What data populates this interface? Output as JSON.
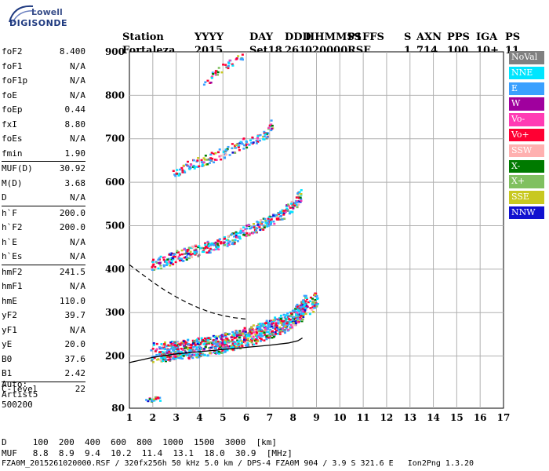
{
  "brand": {
    "line1": "Lowell",
    "line2": "DIGISONDE"
  },
  "header": {
    "labels": [
      "Station",
      "YYYY",
      "DAY",
      "DDD",
      "HHMMSS",
      "P1",
      "FFS",
      "S",
      "AXN",
      "PPS",
      "IGA",
      "PS"
    ],
    "values": [
      "Fortaleza",
      "2015",
      "Set18",
      "261",
      "020000",
      "RSF",
      "",
      "1",
      "714",
      "100",
      "10+",
      "11"
    ]
  },
  "params": [
    [
      {
        "name": "foF2",
        "value": "8.400"
      },
      {
        "name": "foF1",
        "value": "N/A"
      },
      {
        "name": "foF1p",
        "value": "N/A"
      },
      {
        "name": "foE",
        "value": "N/A"
      },
      {
        "name": "foEp",
        "value": "0.44"
      },
      {
        "name": "fxI",
        "value": "8.80"
      },
      {
        "name": "foEs",
        "value": "N/A"
      },
      {
        "name": "fmin",
        "value": "1.90"
      }
    ],
    [
      {
        "name": "MUF(D)",
        "value": "30.92"
      },
      {
        "name": "M(D)",
        "value": "3.68"
      },
      {
        "name": "D",
        "value": "N/A"
      }
    ],
    [
      {
        "name": "h`F",
        "value": "200.0"
      },
      {
        "name": "h`F2",
        "value": "200.0"
      },
      {
        "name": "h`E",
        "value": "N/A"
      },
      {
        "name": "h`Es",
        "value": "N/A"
      }
    ],
    [
      {
        "name": "hmF2",
        "value": "241.5"
      },
      {
        "name": "hmF1",
        "value": "N/A"
      },
      {
        "name": "hmE",
        "value": "110.0"
      },
      {
        "name": "yF2",
        "value": "39.7"
      },
      {
        "name": "yF1",
        "value": "N/A"
      },
      {
        "name": "yE",
        "value": "20.0"
      },
      {
        "name": "B0",
        "value": "37.6"
      },
      {
        "name": "B1",
        "value": "2.42"
      }
    ],
    [
      {
        "name": "C-level",
        "value": "22"
      }
    ]
  ],
  "auto": {
    "line1": "Auto:",
    "line2": "Artist5",
    "line3": "500200"
  },
  "legend": [
    {
      "label": "NoVal",
      "color": "#808080"
    },
    {
      "label": "NNE",
      "color": "#00e5ff"
    },
    {
      "label": "E",
      "color": "#3aa0ff"
    },
    {
      "label": "W",
      "color": "#a0009e"
    },
    {
      "label": "Vo-",
      "color": "#ff3cb4"
    },
    {
      "label": "Vo+",
      "color": "#ff0033"
    },
    {
      "label": "SSW",
      "color": "#ffb0b0"
    },
    {
      "label": "X-",
      "color": "#007a00"
    },
    {
      "label": "X+",
      "color": "#80c060"
    },
    {
      "label": "SSE",
      "color": "#c8c820"
    },
    {
      "label": "NNW",
      "color": "#1010d0"
    }
  ],
  "footer": {
    "d_row": "D     100  200  400  600  800  1000  1500  3000  [km]",
    "muf_row": "MUF   8.8  8.9  9.4  10.2  11.4  13.1  18.0  30.9  [MHz]",
    "file_row": "FZA0M_2015261020000.RSF / 320fx256h 50 kHz 5.0 km / DPS-4 FZA0M 904 / 3.9 S 321.6 E   Ion2Png 1.3.20"
  },
  "chart_data": {
    "type": "scatter",
    "xlim": [
      1,
      17
    ],
    "ylim": [
      80,
      900
    ],
    "xticks": [
      1,
      2,
      3,
      4,
      5,
      6,
      7,
      8,
      9,
      10,
      11,
      12,
      13,
      14,
      15,
      16,
      17
    ],
    "yticks": [
      80,
      200,
      300,
      400,
      500,
      600,
      700,
      800,
      900
    ],
    "grid": true,
    "echo_traces": [
      {
        "name": "F2 O-trace",
        "x": [
          1.9,
          2.5,
          3.0,
          3.5,
          4.0,
          4.5,
          5.0,
          5.5,
          6.0,
          6.5,
          7.0,
          7.5,
          8.0,
          8.3,
          8.5
        ],
        "y": [
          210,
          212,
          215,
          218,
          222,
          226,
          232,
          238,
          246,
          255,
          265,
          275,
          290,
          305,
          325
        ]
      },
      {
        "name": "F2 X-trace",
        "x": [
          2.4,
          3.0,
          4.0,
          5.0,
          6.0,
          7.0,
          8.0,
          8.8,
          9.0
        ],
        "y": [
          210,
          214,
          222,
          232,
          246,
          265,
          290,
          320,
          335
        ]
      },
      {
        "name": "2nd hop",
        "x": [
          1.9,
          2.5,
          3.0,
          3.5,
          4.0,
          4.5,
          5.0,
          5.5,
          6.0,
          6.5,
          7.0,
          7.5,
          8.0,
          8.3
        ],
        "y": [
          410,
          420,
          430,
          438,
          448,
          455,
          465,
          475,
          490,
          500,
          515,
          530,
          550,
          575
        ]
      },
      {
        "name": "3rd hop",
        "x": [
          2.8,
          3.3,
          3.8,
          4.3,
          4.8,
          5.3,
          5.8,
          6.3,
          6.8,
          7.1
        ],
        "y": [
          620,
          635,
          645,
          655,
          665,
          675,
          690,
          700,
          715,
          735
        ]
      },
      {
        "name": "4th hop",
        "x": [
          4.2,
          4.6,
          5.0,
          5.4,
          5.8
        ],
        "y": [
          830,
          850,
          865,
          880,
          895
        ]
      },
      {
        "name": "low echo",
        "x": [
          1.7,
          1.9,
          2.1,
          2.3
        ],
        "y": [
          100,
          102,
          104,
          102
        ]
      }
    ],
    "profile_solid": {
      "x": [
        1.0,
        2.0,
        3.0,
        4.0,
        5.0,
        6.0,
        7.0,
        7.8,
        8.2,
        8.4
      ],
      "y": [
        185,
        197,
        205,
        210,
        215,
        220,
        225,
        230,
        235,
        241.5
      ]
    },
    "profile_dashed": {
      "x": [
        1.0,
        1.5,
        2.0,
        2.5,
        3.0,
        3.5,
        4.0,
        4.5,
        5.0,
        5.5,
        6.0
      ],
      "y": [
        410,
        390,
        370,
        352,
        336,
        322,
        310,
        300,
        293,
        288,
        285
      ]
    }
  }
}
